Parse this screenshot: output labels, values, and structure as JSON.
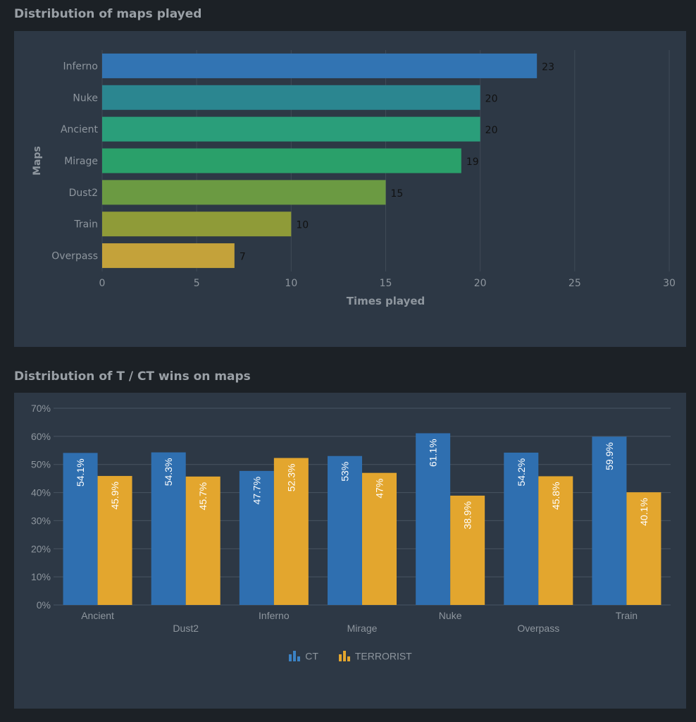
{
  "sections": {
    "maps_played_title": "Distribution of maps played",
    "tct_wins_title": "Distribution of T / CT wins on maps"
  },
  "chart_data": [
    {
      "type": "bar",
      "orientation": "horizontal",
      "title": "Distribution of maps played",
      "categories": [
        "Inferno",
        "Nuke",
        "Ancient",
        "Mirage",
        "Dust2",
        "Train",
        "Overpass"
      ],
      "values": [
        23,
        20,
        20,
        19,
        15,
        10,
        7
      ],
      "bar_colors": [
        "#3274b3",
        "#2b8690",
        "#2a9e7a",
        "#2aa06a",
        "#6b9a42",
        "#8f9b38",
        "#c4a23a"
      ],
      "xlabel": "Times played",
      "ylabel": "Maps",
      "xlim": [
        0,
        30
      ],
      "xticks": [
        0,
        5,
        10,
        15,
        20,
        25,
        30
      ],
      "grid": true
    },
    {
      "type": "bar",
      "orientation": "vertical",
      "title": "Distribution of T / CT wins on maps",
      "categories": [
        "Ancient",
        "Dust2",
        "Inferno",
        "Mirage",
        "Nuke",
        "Overpass",
        "Train"
      ],
      "series": [
        {
          "name": "CT",
          "color": "#2f6fb0",
          "values": [
            54.1,
            54.3,
            47.7,
            53,
            61.1,
            54.2,
            59.9
          ],
          "labels": [
            "54.1%",
            "54.3%",
            "47.7%",
            "53%",
            "61.1%",
            "54.2%",
            "59.9%"
          ]
        },
        {
          "name": "TERRORIST",
          "color": "#e3a62e",
          "values": [
            45.9,
            45.7,
            52.3,
            47,
            38.9,
            45.8,
            40.1
          ],
          "labels": [
            "45.9%",
            "45.7%",
            "52.3%",
            "47%",
            "38.9%",
            "45.8%",
            "40.1%"
          ]
        }
      ],
      "ylim": [
        0,
        70
      ],
      "yticks": [
        0,
        10,
        20,
        30,
        40,
        50,
        60,
        70
      ],
      "ytick_labels": [
        "0%",
        "10%",
        "20%",
        "30%",
        "40%",
        "50%",
        "60%",
        "70%"
      ],
      "legend": "bottom-center",
      "grid": true
    }
  ]
}
